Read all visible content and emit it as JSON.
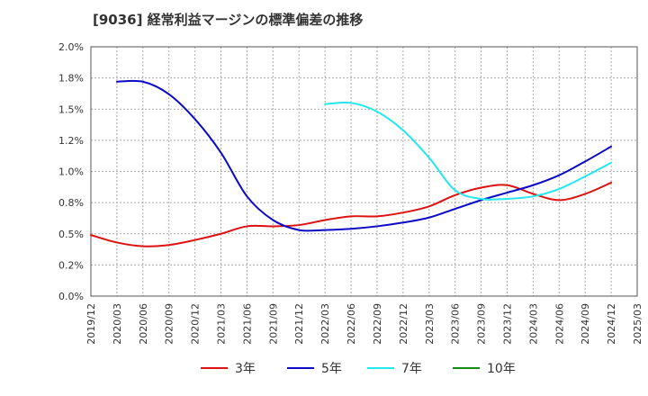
{
  "title": "[9036]  経常利益マージンの標準偏差の推移",
  "chart_data": {
    "type": "line",
    "title": "[9036]  経常利益マージンの標準偏差の推移",
    "xlabel": "",
    "ylabel": "",
    "ylim": [
      0,
      2.0
    ],
    "y_ticks": [
      "0.0%",
      "0.2%",
      "0.5%",
      "0.8%",
      "1.0%",
      "1.2%",
      "1.5%",
      "1.8%",
      "2.0%"
    ],
    "x_categories": [
      "2019/12",
      "2020/03",
      "2020/06",
      "2020/09",
      "2020/12",
      "2021/03",
      "2021/06",
      "2021/09",
      "2021/12",
      "2022/03",
      "2022/06",
      "2022/09",
      "2022/12",
      "2023/03",
      "2023/06",
      "2023/09",
      "2023/12",
      "2024/03",
      "2024/06",
      "2024/09",
      "2024/12",
      "2025/03"
    ],
    "grid": true,
    "legend_position": "bottom",
    "series": [
      {
        "name": "3年",
        "color": "#dd1111",
        "values": [
          0.49,
          0.43,
          0.4,
          0.41,
          0.45,
          0.5,
          0.56,
          0.56,
          0.57,
          0.61,
          0.64,
          0.64,
          0.67,
          0.72,
          0.81,
          0.87,
          0.89,
          0.82,
          0.77,
          0.82,
          0.91,
          null
        ]
      },
      {
        "name": "5年",
        "color": "#0a0ac8",
        "values": [
          null,
          1.72,
          1.72,
          1.62,
          1.42,
          1.15,
          0.8,
          0.61,
          0.53,
          0.53,
          0.54,
          0.56,
          0.59,
          0.63,
          0.7,
          0.77,
          0.83,
          0.89,
          0.97,
          1.08,
          1.2,
          null
        ]
      },
      {
        "name": "7年",
        "color": "#22e8ee",
        "values": [
          null,
          null,
          null,
          null,
          null,
          null,
          null,
          null,
          null,
          1.54,
          1.55,
          1.48,
          1.33,
          1.11,
          0.85,
          0.78,
          0.78,
          0.8,
          0.86,
          0.96,
          1.07,
          null
        ]
      },
      {
        "name": "10年",
        "color": "#138a13",
        "values": [
          null,
          null,
          null,
          null,
          null,
          null,
          null,
          null,
          null,
          null,
          null,
          null,
          null,
          null,
          null,
          null,
          null,
          null,
          null,
          null,
          null,
          null
        ]
      }
    ]
  }
}
